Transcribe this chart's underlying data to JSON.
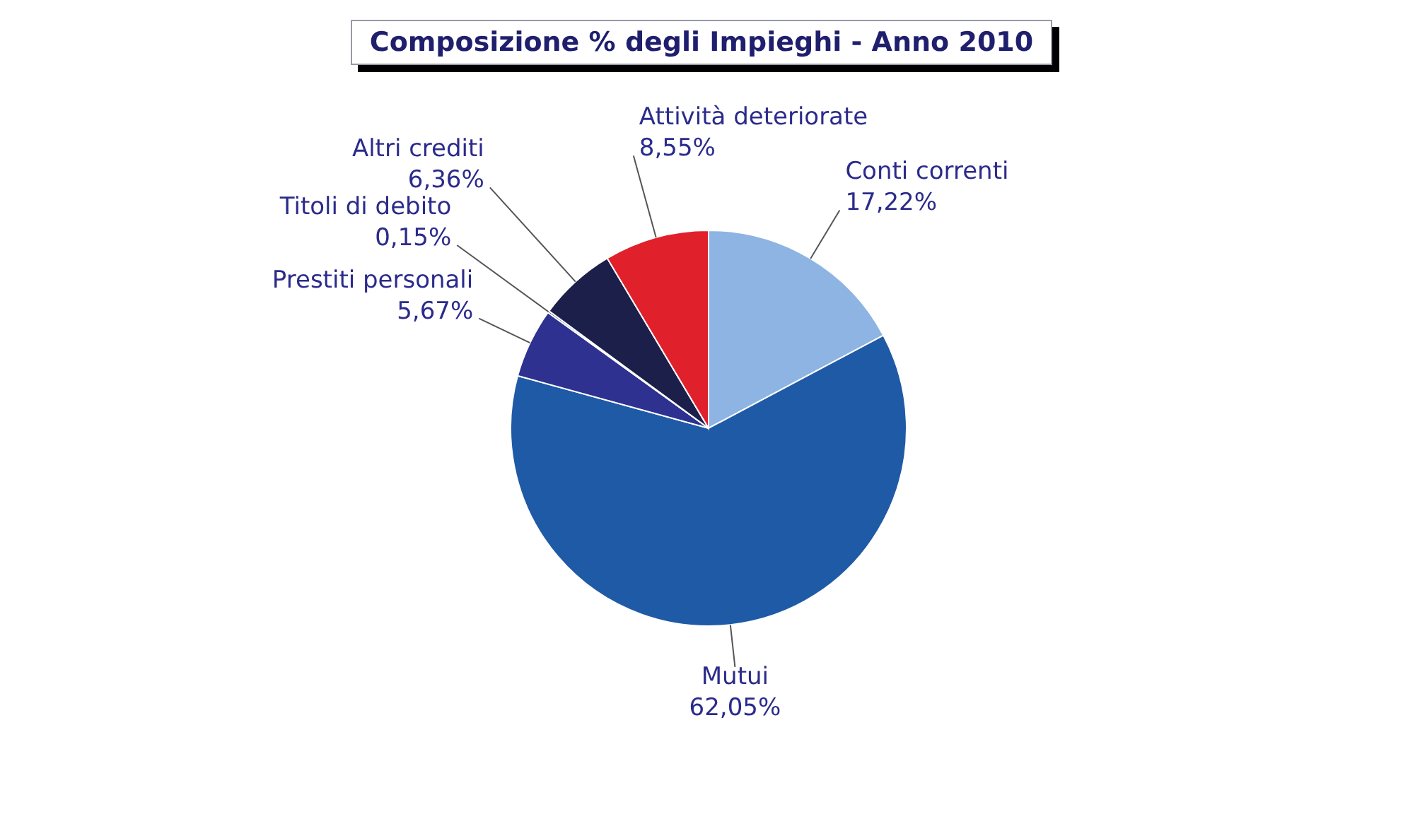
{
  "chart_data": {
    "type": "pie",
    "title": "Composizione % degli Impieghi - Anno 2010",
    "categories": [
      "Conti correnti",
      "Mutui",
      "Prestiti personali",
      "Titoli di debito",
      "Altri crediti",
      "Attività deteriorate"
    ],
    "values": [
      17.22,
      62.05,
      5.67,
      0.15,
      6.36,
      8.55
    ],
    "value_labels": [
      "17,22%",
      "62,05%",
      "5,67%",
      "0,15%",
      "6,36%",
      "8,55%"
    ],
    "colors": [
      "#8db4e2",
      "#1f5aa6",
      "#2e3190",
      "#1c2a6b",
      "#1b1f4a",
      "#e0202a"
    ],
    "legend": false
  }
}
